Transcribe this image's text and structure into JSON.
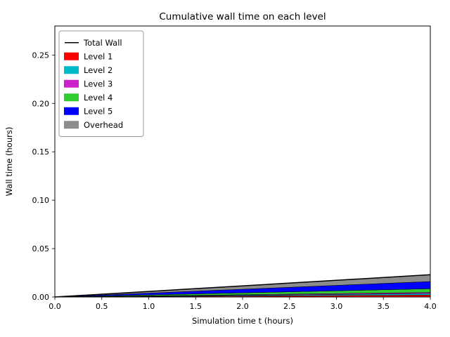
{
  "chart_data": {
    "type": "area",
    "stacked": true,
    "title": "Cumulative wall time on each level",
    "xlabel": "Simulation time t (hours)",
    "ylabel": "Wall time (hours)",
    "xlim": [
      0,
      4
    ],
    "ylim": [
      0,
      0.28
    ],
    "grid": false,
    "x": [
      0,
      4
    ],
    "series": [
      {
        "name": "Level 1",
        "color": "#ff0000",
        "values": [
          0,
          0.002
        ]
      },
      {
        "name": "Level 2",
        "color": "#00bcc8",
        "values": [
          0,
          0.0015
        ]
      },
      {
        "name": "Level 3",
        "color": "#cc22cc",
        "values": [
          0,
          0.0012
        ]
      },
      {
        "name": "Level 4",
        "color": "#32cd32",
        "values": [
          0,
          0.0038
        ]
      },
      {
        "name": "Level 5",
        "color": "#0000ff",
        "values": [
          0,
          0.0075
        ]
      },
      {
        "name": "Overhead",
        "color": "#8c8c8c",
        "values": [
          0,
          0.007
        ]
      }
    ],
    "total_line": {
      "name": "Total Wall",
      "color": "#000000",
      "values": [
        0,
        0.023
      ]
    },
    "xticks": [
      0,
      0.5,
      1,
      1.5,
      2,
      2.5,
      3,
      3.5,
      4
    ],
    "xtick_labels": [
      "0.0",
      "0.5",
      "1.0",
      "1.5",
      "2.0",
      "2.5",
      "3.0",
      "3.5",
      "4.0"
    ],
    "yticks": [
      0,
      0.05,
      0.1,
      0.15,
      0.2,
      0.25
    ],
    "ytick_labels": [
      "0.00",
      "0.05",
      "0.10",
      "0.15",
      "0.20",
      "0.25"
    ],
    "legend": {
      "position": "upper left",
      "entries": [
        {
          "label": "Total Wall",
          "swatch": "line",
          "color": "#000000"
        },
        {
          "label": "Level 1",
          "swatch": "patch",
          "color": "#ff0000"
        },
        {
          "label": "Level 2",
          "swatch": "patch",
          "color": "#00bcc8"
        },
        {
          "label": "Level 3",
          "swatch": "patch",
          "color": "#cc22cc"
        },
        {
          "label": "Level 4",
          "swatch": "patch",
          "color": "#32cd32"
        },
        {
          "label": "Level 5",
          "swatch": "patch",
          "color": "#0000ff"
        },
        {
          "label": "Overhead",
          "swatch": "patch",
          "color": "#8c8c8c"
        }
      ]
    }
  }
}
